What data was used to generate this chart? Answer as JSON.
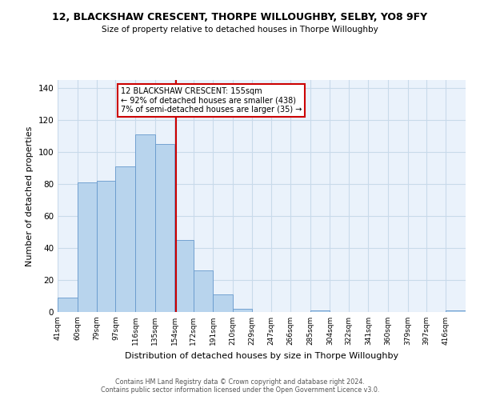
{
  "title": "12, BLACKSHAW CRESCENT, THORPE WILLOUGHBY, SELBY, YO8 9FY",
  "subtitle": "Size of property relative to detached houses in Thorpe Willoughby",
  "xlabel": "Distribution of detached houses by size in Thorpe Willoughby",
  "ylabel": "Number of detached properties",
  "bin_labels": [
    "41sqm",
    "60sqm",
    "79sqm",
    "97sqm",
    "116sqm",
    "135sqm",
    "154sqm",
    "172sqm",
    "191sqm",
    "210sqm",
    "229sqm",
    "247sqm",
    "266sqm",
    "285sqm",
    "304sqm",
    "322sqm",
    "341sqm",
    "360sqm",
    "379sqm",
    "397sqm",
    "416sqm"
  ],
  "bar_heights": [
    9,
    81,
    82,
    91,
    111,
    105,
    45,
    26,
    11,
    2,
    0,
    0,
    0,
    1,
    0,
    0,
    0,
    0,
    0,
    0,
    1
  ],
  "bar_color": "#b8d4ed",
  "bar_edge_color": "#6699cc",
  "property_line_x": 155,
  "annotation_text": "12 BLACKSHAW CRESCENT: 155sqm\n← 92% of detached houses are smaller (438)\n7% of semi-detached houses are larger (35) →",
  "annotation_box_color": "#ffffff",
  "annotation_box_edge": "#cc0000",
  "vline_color": "#cc0000",
  "ylim": [
    0,
    145
  ],
  "yticks": [
    0,
    20,
    40,
    60,
    80,
    100,
    120,
    140
  ],
  "grid_color": "#c8daea",
  "background_color": "#eaf2fb",
  "footer": "Contains HM Land Registry data © Crown copyright and database right 2024.\nContains public sector information licensed under the Open Government Licence v3.0.",
  "bin_edges": [
    41,
    60,
    79,
    97,
    116,
    135,
    154,
    172,
    191,
    210,
    229,
    247,
    266,
    285,
    304,
    322,
    341,
    360,
    379,
    397,
    416,
    435
  ],
  "fig_width": 6.0,
  "fig_height": 5.0,
  "dpi": 100
}
